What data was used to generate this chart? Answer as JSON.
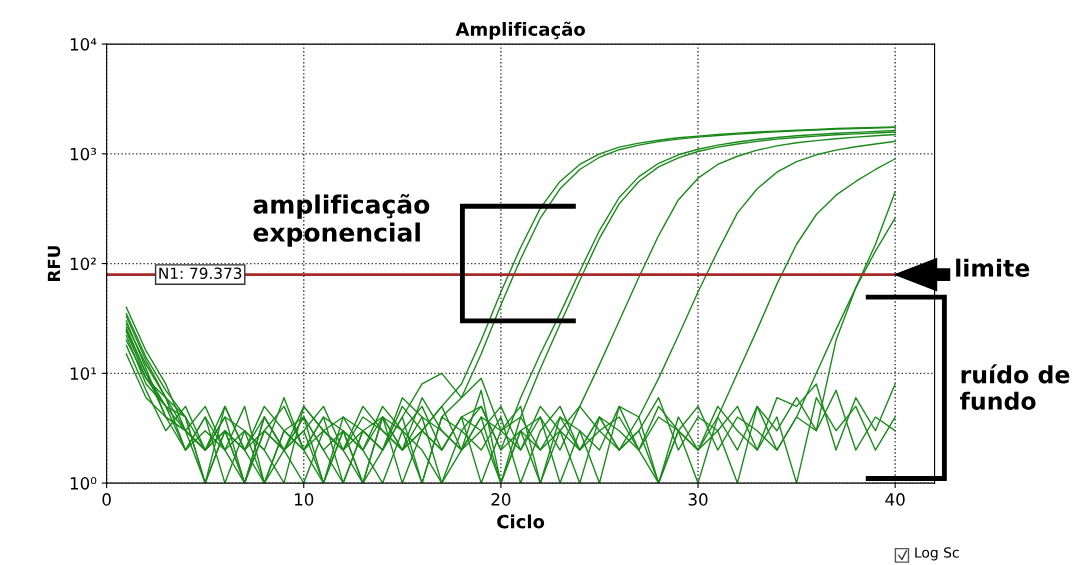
{
  "chart_data": {
    "type": "line",
    "title": "Amplificação",
    "xlabel": "Ciclo",
    "ylabel": "RFU",
    "x": [
      1,
      2,
      3,
      4,
      5,
      6,
      7,
      8,
      9,
      10,
      11,
      12,
      13,
      14,
      15,
      16,
      17,
      18,
      19,
      20,
      21,
      22,
      23,
      24,
      25,
      26,
      27,
      28,
      29,
      30,
      31,
      32,
      33,
      34,
      35,
      36,
      37,
      38,
      39,
      40
    ],
    "series": [
      {
        "color": "#1a8a1a",
        "values": [
          35,
          14,
          7,
          4,
          2,
          3,
          1,
          4,
          2,
          3,
          1,
          3,
          2,
          4,
          2,
          3,
          5,
          8,
          20,
          55,
          140,
          320,
          560,
          800,
          1000,
          1150,
          1250,
          1330,
          1400,
          1450,
          1500,
          1540,
          1580,
          1610,
          1640,
          1670,
          1700,
          1720,
          1740,
          1760
        ]
      },
      {
        "color": "#1a8a1a",
        "values": [
          28,
          12,
          6,
          3,
          5,
          2,
          3,
          1,
          2,
          4,
          2,
          1,
          3,
          2,
          4,
          1,
          4,
          6,
          15,
          42,
          110,
          260,
          480,
          720,
          930,
          1090,
          1200,
          1290,
          1360,
          1420,
          1470,
          1510,
          1550,
          1590,
          1620,
          1650,
          1680,
          1700,
          1720,
          1740
        ]
      },
      {
        "color": "#1a8a1a",
        "values": [
          25,
          10,
          5,
          3,
          2,
          4,
          1,
          3,
          2,
          5,
          3,
          2,
          1,
          4,
          3,
          2,
          1,
          3,
          5,
          2,
          6,
          15,
          35,
          85,
          200,
          400,
          620,
          820,
          980,
          1100,
          1200,
          1280,
          1350,
          1410,
          1460,
          1500,
          1540,
          1570,
          1600,
          1630
        ]
      },
      {
        "color": "#1a8a1a",
        "values": [
          20,
          9,
          6,
          2,
          4,
          1,
          3,
          2,
          6,
          2,
          3,
          4,
          2,
          1,
          3,
          5,
          2,
          4,
          1,
          3,
          4,
          11,
          28,
          70,
          170,
          350,
          560,
          760,
          920,
          1050,
          1150,
          1230,
          1300,
          1360,
          1410,
          1450,
          1490,
          1520,
          1550,
          1580
        ]
      },
      {
        "color": "#1a8a1a",
        "values": [
          30,
          11,
          4,
          3,
          2,
          5,
          2,
          1,
          3,
          2,
          4,
          3,
          1,
          2,
          5,
          3,
          2,
          4,
          3,
          1,
          4,
          2,
          3,
          5,
          12,
          30,
          75,
          180,
          380,
          600,
          800,
          950,
          1080,
          1180,
          1260,
          1320,
          1370,
          1420,
          1460,
          1500
        ]
      },
      {
        "color": "#1a8a1a",
        "values": [
          22,
          8,
          5,
          4,
          1,
          3,
          2,
          4,
          2,
          1,
          3,
          2,
          5,
          3,
          2,
          4,
          1,
          2,
          3,
          5,
          2,
          4,
          1,
          3,
          2,
          5,
          4,
          9,
          22,
          55,
          130,
          290,
          480,
          680,
          850,
          980,
          1080,
          1160,
          1230,
          1300
        ]
      },
      {
        "color": "#1a8a1a",
        "values": [
          26,
          10,
          4,
          2,
          3,
          2,
          5,
          1,
          3,
          4,
          2,
          3,
          1,
          4,
          2,
          3,
          5,
          2,
          4,
          1,
          3,
          2,
          4,
          3,
          1,
          5,
          2,
          4,
          3,
          2,
          4,
          10,
          25,
          65,
          150,
          280,
          420,
          560,
          720,
          900
        ]
      },
      {
        "color": "#1a8a1a",
        "values": [
          18,
          7,
          3,
          5,
          2,
          3,
          1,
          4,
          2,
          3,
          5,
          2,
          3,
          4,
          1,
          3,
          2,
          4,
          5,
          2,
          3,
          1,
          4,
          2,
          3,
          4,
          2,
          1,
          3,
          5,
          2,
          4,
          3,
          2,
          4,
          10,
          25,
          60,
          150,
          450
        ]
      },
      {
        "color": "#1a8a1a",
        "values": [
          40,
          16,
          8,
          3,
          2,
          4,
          3,
          2,
          1,
          5,
          3,
          2,
          4,
          3,
          2,
          6,
          3,
          2,
          4,
          3,
          5,
          1,
          3,
          2,
          4,
          3,
          2,
          5,
          3,
          1,
          4,
          2,
          5,
          3,
          6,
          3,
          20,
          60,
          130,
          260
        ]
      },
      {
        "color": "#1a8a1a",
        "values": [
          33,
          13,
          6,
          4,
          1,
          3,
          2,
          5,
          3,
          2,
          1,
          4,
          3,
          2,
          6,
          4,
          3,
          2,
          7,
          1,
          3,
          4,
          2,
          5,
          3,
          2,
          4,
          1,
          3,
          2,
          5,
          3,
          2,
          4,
          1,
          6,
          3,
          5,
          2,
          4
        ]
      },
      {
        "color": "#1a8a1a",
        "values": [
          24,
          9,
          5,
          2,
          4,
          2,
          1,
          3,
          5,
          2,
          4,
          1,
          3,
          2,
          4,
          8,
          10,
          6,
          9,
          3,
          2,
          5,
          3,
          1,
          4,
          2,
          3,
          6,
          2,
          4,
          3,
          1,
          5,
          2,
          4,
          3,
          7,
          2,
          4,
          3
        ]
      },
      {
        "color": "#1a8a1a",
        "values": [
          15,
          6,
          4,
          3,
          1,
          5,
          2,
          3,
          2,
          4,
          1,
          3,
          2,
          5,
          3,
          1,
          4,
          3,
          2,
          4,
          1,
          3,
          5,
          2,
          4,
          2,
          3,
          1,
          4,
          2,
          3,
          5,
          2,
          6,
          5,
          8,
          2,
          6,
          3,
          8
        ]
      }
    ],
    "xlim": [
      0,
      42
    ],
    "xticks": [
      0,
      10,
      20,
      30,
      40
    ],
    "ylim": [
      1,
      10000
    ],
    "log": true,
    "yticks": [
      {
        "value": 1,
        "label": "10⁰"
      },
      {
        "value": 10,
        "label": "10¹"
      },
      {
        "value": 100,
        "label": "10²"
      },
      {
        "value": 1000,
        "label": "10³"
      },
      {
        "value": 10000,
        "label": "10⁴"
      }
    ],
    "grid": true,
    "marker": "none",
    "line_style": "solid",
    "legend": false,
    "ref_lines": [
      {
        "axis": "y",
        "value": 79.373,
        "label": "N1: 79.373",
        "color": "#a52a2a",
        "line_style": "solid"
      }
    ],
    "annotations": [
      "amplificação\nexponencial",
      {
        "text": "limite",
        "x": 40,
        "y": 79.373
      },
      "ruído de\nfundo",
      "Log Sc"
    ]
  }
}
